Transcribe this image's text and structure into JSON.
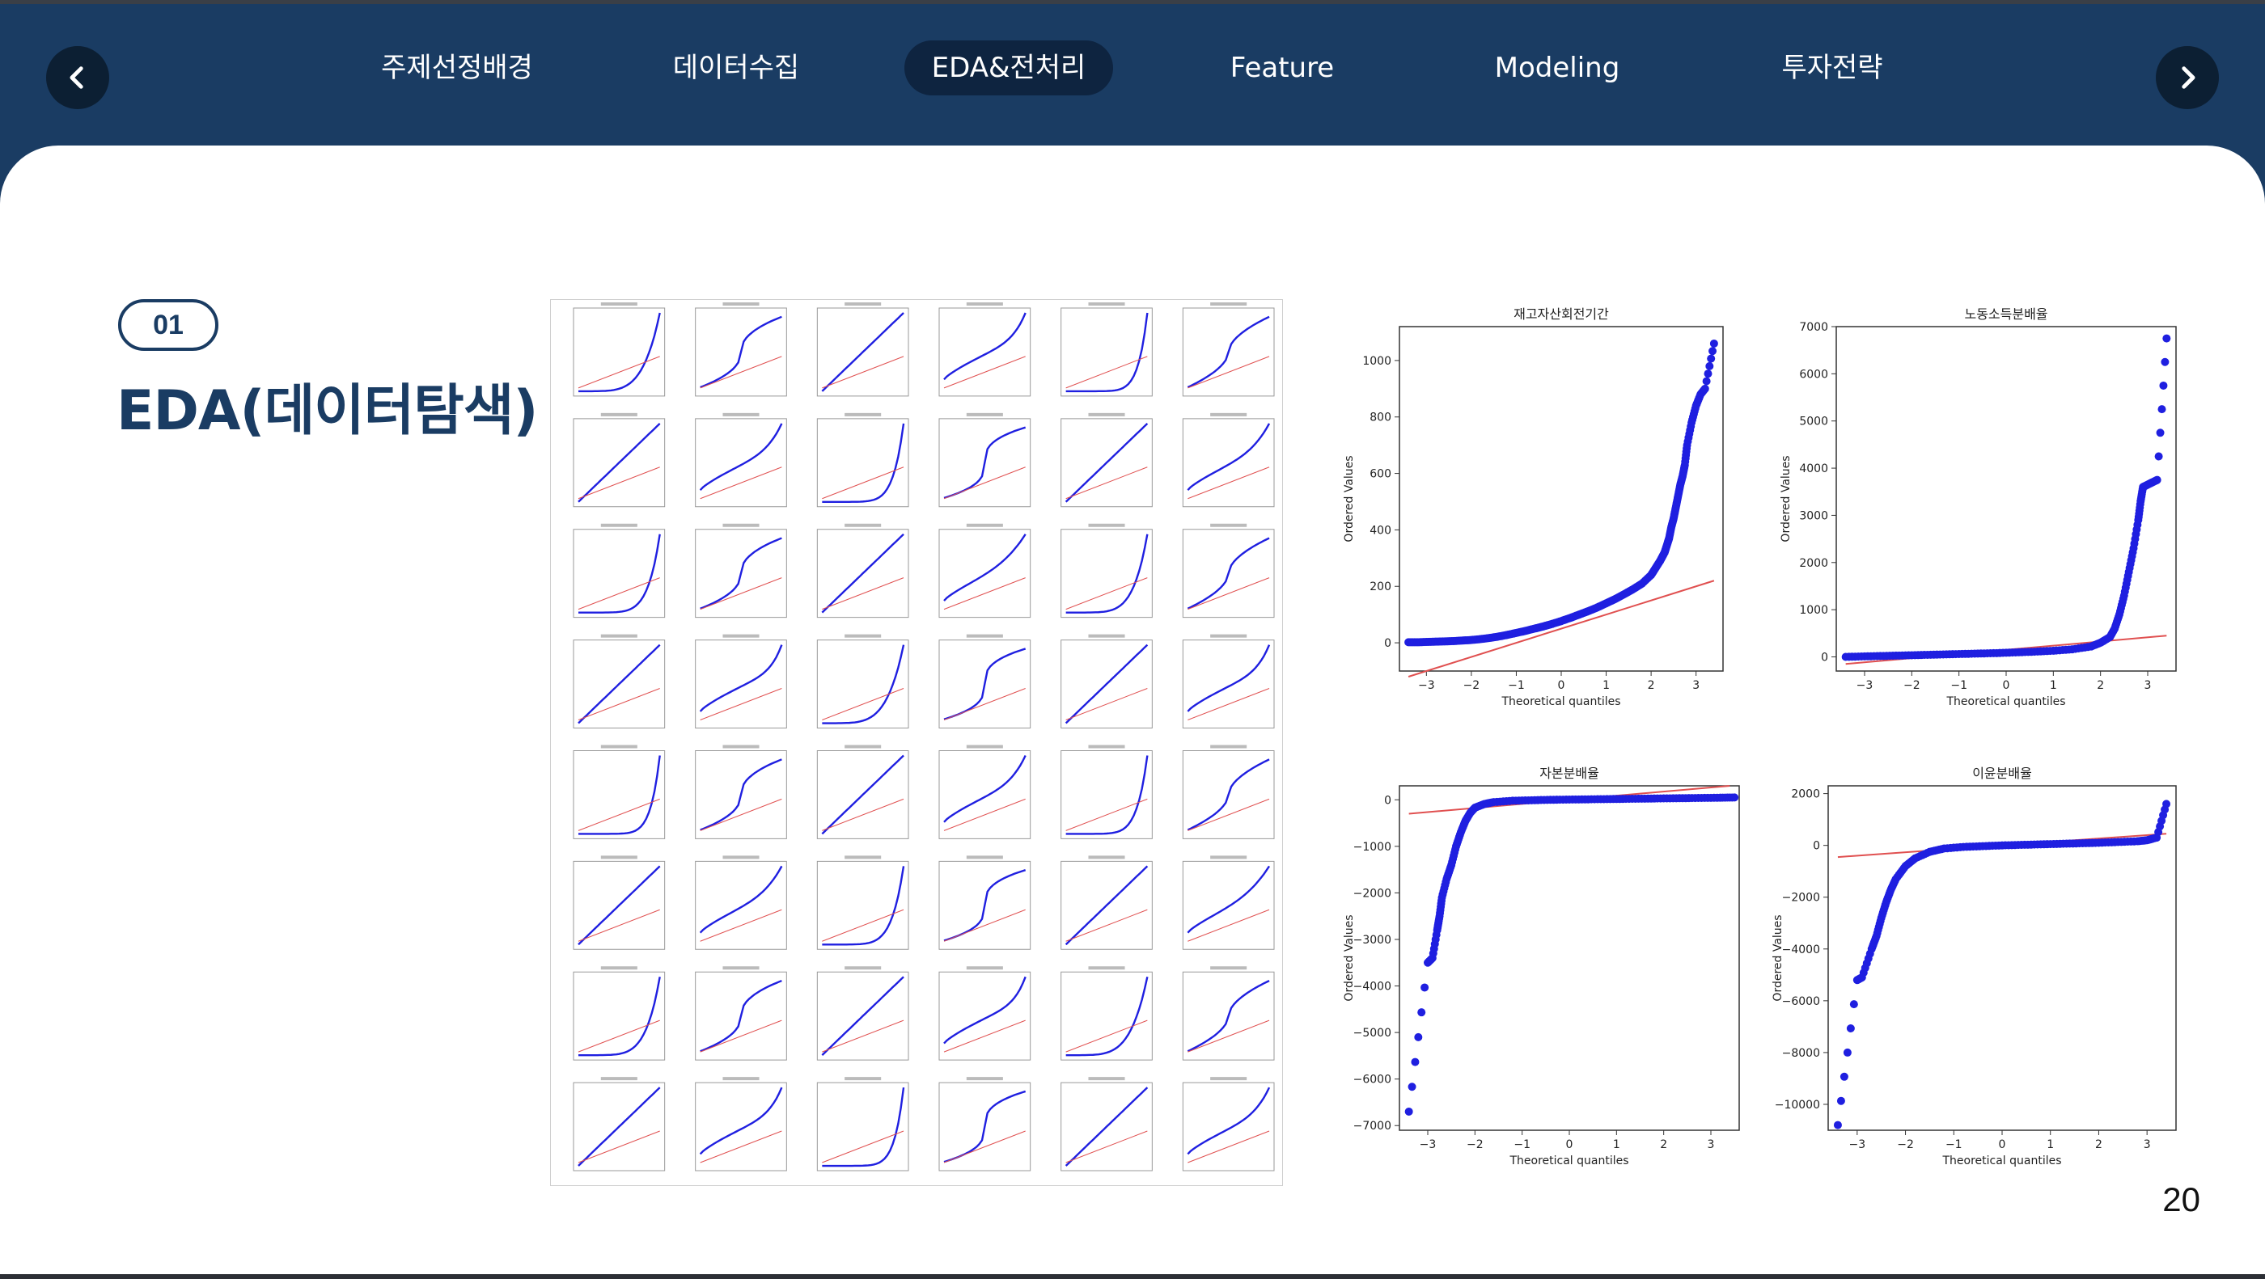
{
  "nav": {
    "prev_icon": "chevron-left-icon",
    "next_icon": "chevron-right-icon",
    "tabs": [
      {
        "label": "주제선정배경",
        "active": false
      },
      {
        "label": "데이터수집",
        "active": false
      },
      {
        "label": "EDA&전처리",
        "active": true
      },
      {
        "label": "Feature",
        "active": false
      },
      {
        "label": "Modeling",
        "active": false
      },
      {
        "label": "투자전략",
        "active": false
      }
    ]
  },
  "section": {
    "number": "01",
    "title": "EDA(데이터탐색)"
  },
  "page_number": "20",
  "colors": {
    "header": "#1a3c63",
    "points": "#1f1fe0",
    "fit_line": "#e05050"
  },
  "grid_figure": {
    "rows": 8,
    "cols": 6,
    "description_icon": "qq-plot-grid"
  },
  "chart_data": [
    {
      "type": "scatter",
      "title": "재고자산회전기간",
      "xlabel": "Theoretical quantiles",
      "ylabel": "Ordered Values",
      "xlim": [
        -3.6,
        3.6
      ],
      "ylim": [
        -100,
        1120
      ],
      "yticks": [
        "0",
        "200",
        "400",
        "600",
        "800",
        "1000"
      ],
      "xticks": [
        "−3",
        "−2",
        "−1",
        "0",
        "1",
        "2",
        "3"
      ],
      "fit_line": [
        [
          -3.4,
          -120
        ],
        [
          3.4,
          220
        ]
      ],
      "series": [
        {
          "x": [
            -3.4,
            -3.2,
            -3.0,
            -2.8,
            -2.6,
            -2.4,
            -2.2,
            -2.0,
            -1.8,
            -1.6,
            -1.4,
            -1.2,
            -1.0,
            -0.8,
            -0.6,
            -0.4,
            -0.2,
            0.0,
            0.2,
            0.4,
            0.6,
            0.8,
            1.0,
            1.2,
            1.4,
            1.6,
            1.8,
            2.0,
            2.1,
            2.2,
            2.3,
            2.35,
            2.4,
            2.45,
            2.5,
            2.55,
            2.6,
            2.65,
            2.7,
            2.75,
            2.8,
            2.9,
            3.0,
            3.1,
            3.2,
            3.4
          ],
          "y": [
            2,
            2,
            3,
            4,
            5,
            6,
            8,
            10,
            13,
            17,
            22,
            28,
            35,
            42,
            50,
            58,
            67,
            77,
            88,
            100,
            112,
            125,
            140,
            155,
            172,
            190,
            210,
            240,
            265,
            290,
            320,
            345,
            370,
            410,
            440,
            480,
            520,
            560,
            590,
            630,
            700,
            780,
            840,
            880,
            900,
            1060
          ]
        }
      ]
    },
    {
      "type": "scatter",
      "title": "노동소득분배율",
      "xlabel": "Theoretical quantiles",
      "ylabel": "Ordered Values",
      "xlim": [
        -3.6,
        3.6
      ],
      "ylim": [
        -300,
        7000
      ],
      "yticks": [
        "0",
        "1000",
        "2000",
        "3000",
        "4000",
        "5000",
        "6000",
        "7000"
      ],
      "xticks": [
        "−3",
        "−2",
        "−1",
        "0",
        "1",
        "2",
        "3"
      ],
      "fit_line": [
        [
          -3.4,
          -150
        ],
        [
          3.4,
          450
        ]
      ],
      "series": [
        {
          "x": [
            -3.4,
            -3.0,
            -2.6,
            -2.2,
            -1.8,
            -1.4,
            -1.0,
            -0.6,
            -0.2,
            0.2,
            0.6,
            1.0,
            1.4,
            1.8,
            2.0,
            2.2,
            2.3,
            2.4,
            2.5,
            2.6,
            2.7,
            2.8,
            2.85,
            2.9,
            3.0,
            3.1,
            3.2,
            3.4
          ],
          "y": [
            0,
            10,
            20,
            30,
            40,
            50,
            60,
            70,
            80,
            95,
            110,
            130,
            160,
            220,
            300,
            420,
            600,
            900,
            1300,
            1800,
            2300,
            2900,
            3300,
            3600,
            3650,
            3700,
            3750,
            6750
          ]
        }
      ]
    },
    {
      "type": "scatter",
      "title": "자본분배율",
      "xlabel": "Theoretical quantiles",
      "ylabel": "Ordered Values",
      "xlim": [
        -3.6,
        3.6
      ],
      "ylim": [
        -7100,
        300
      ],
      "yticks": [
        "0",
        "−1000",
        "−2000",
        "−3000",
        "−4000",
        "−5000",
        "−6000",
        "−7000"
      ],
      "xticks": [
        "−3",
        "−2",
        "−1",
        "0",
        "1",
        "2",
        "3"
      ],
      "fit_line": [
        [
          -3.4,
          -300
        ],
        [
          3.4,
          300
        ]
      ],
      "series": [
        {
          "x": [
            -3.4,
            -3.0,
            -2.9,
            -2.8,
            -2.75,
            -2.7,
            -2.6,
            -2.5,
            -2.4,
            -2.3,
            -2.2,
            -2.1,
            -2.0,
            -1.8,
            -1.6,
            -1.2,
            -0.8,
            -0.4,
            0.0,
            0.4,
            0.8,
            1.2,
            1.6,
            2.0,
            2.4,
            2.8,
            3.2,
            3.5
          ],
          "y": [
            -6700,
            -3500,
            -3400,
            -2800,
            -2500,
            -2100,
            -1700,
            -1400,
            -1000,
            -700,
            -450,
            -280,
            -170,
            -90,
            -50,
            -20,
            -10,
            0,
            5,
            10,
            15,
            20,
            25,
            30,
            35,
            40,
            45,
            50
          ]
        }
      ]
    },
    {
      "type": "scatter",
      "title": "이윤분배율",
      "xlabel": "Theoretical quantiles",
      "ylabel": "Ordered Values",
      "xlim": [
        -3.6,
        3.6
      ],
      "ylim": [
        -11000,
        2300
      ],
      "yticks": [
        "2000",
        "0",
        "−2000",
        "−4000",
        "−6000",
        "−8000",
        "−10000"
      ],
      "xticks": [
        "−3",
        "−2",
        "−1",
        "0",
        "1",
        "2",
        "3"
      ],
      "fit_line": [
        [
          -3.4,
          -450
        ],
        [
          3.4,
          450
        ]
      ],
      "series": [
        {
          "x": [
            -3.4,
            -3.0,
            -2.9,
            -2.7,
            -2.6,
            -2.5,
            -2.4,
            -2.3,
            -2.2,
            -2.0,
            -1.8,
            -1.5,
            -1.2,
            -0.8,
            -0.4,
            0.0,
            0.4,
            0.8,
            1.2,
            1.6,
            2.0,
            2.4,
            2.8,
            3.0,
            3.2,
            3.4
          ],
          "y": [
            -10800,
            -5200,
            -5100,
            -4000,
            -3500,
            -2800,
            -2200,
            -1700,
            -1300,
            -800,
            -500,
            -250,
            -120,
            -60,
            -30,
            0,
            20,
            40,
            60,
            80,
            100,
            130,
            160,
            200,
            300,
            1600
          ]
        }
      ]
    }
  ]
}
